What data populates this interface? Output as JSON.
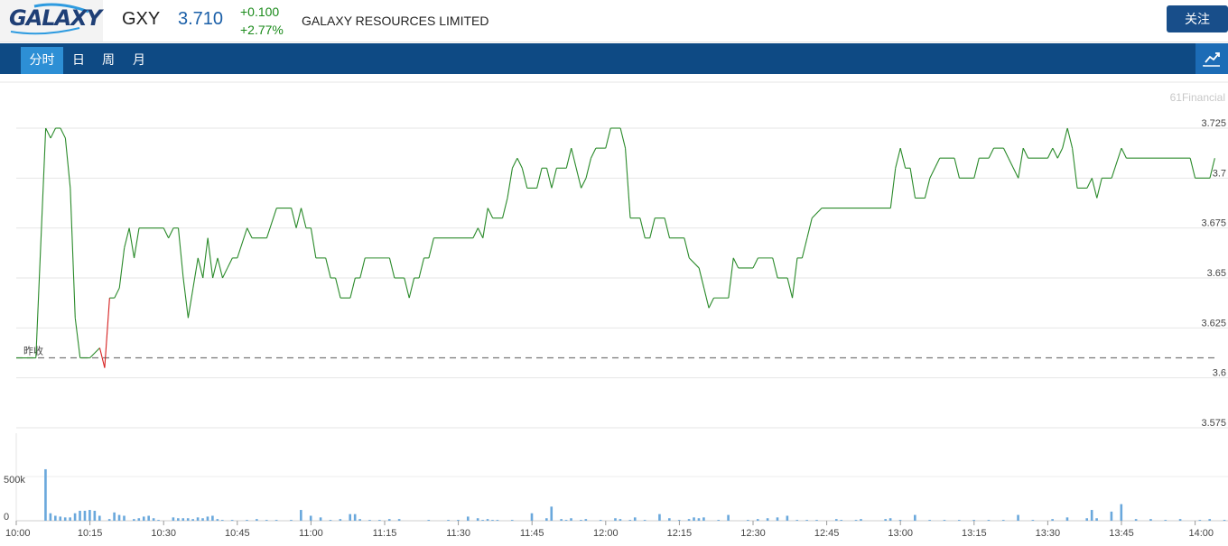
{
  "header": {
    "logo_text": "GALAXY",
    "ticker": "GXY",
    "price": "3.710",
    "change": "+0.100",
    "change_pct": "+2.77%",
    "company": "GALAXY RESOURCES LIMITED",
    "follow_label": "关注"
  },
  "tabs": [
    {
      "label": "分时",
      "active": true
    },
    {
      "label": "日",
      "active": false
    },
    {
      "label": "周",
      "active": false
    },
    {
      "label": "月",
      "active": false
    }
  ],
  "colors": {
    "nav": "#0e4a84",
    "active_tab": "#2d8fd5",
    "up_line": "#2a8a2a",
    "down_line": "#d62020",
    "volume": "#6aa8dc"
  },
  "watermark": "61Financial",
  "chart_data": {
    "type": "line",
    "prev_close": 3.61,
    "prev_close_label": "昨收",
    "ylim": [
      3.575,
      3.725
    ],
    "y_ticks": [
      3.725,
      3.7,
      3.675,
      3.65,
      3.625,
      3.6,
      3.575
    ],
    "y_tick_labels": [
      "3.725",
      "3.7",
      "3.675",
      "3.65",
      "3.625",
      "3.6",
      "3.575"
    ],
    "x_tick_labels": [
      "10:00",
      "10:15",
      "10:30",
      "10:45",
      "11:00",
      "11:15",
      "11:30",
      "11:45",
      "12:00",
      "12:15",
      "12:30",
      "12:45",
      "13:00",
      "13:15",
      "13:30",
      "13:45",
      "14:00"
    ],
    "price_series": [
      [
        "10:00",
        3.61
      ],
      [
        "10:04",
        3.61
      ],
      [
        "10:06",
        3.725
      ],
      [
        "10:07",
        3.72
      ],
      [
        "10:08",
        3.725
      ],
      [
        "10:09",
        3.725
      ],
      [
        "10:10",
        3.72
      ],
      [
        "10:11",
        3.695
      ],
      [
        "10:12",
        3.63
      ],
      [
        "10:13",
        3.61
      ],
      [
        "10:15",
        3.61
      ],
      [
        "10:17",
        3.615
      ],
      [
        "10:18",
        3.605
      ],
      [
        "10:19",
        3.64
      ],
      [
        "10:20",
        3.64
      ],
      [
        "10:21",
        3.645
      ],
      [
        "10:22",
        3.665
      ],
      [
        "10:23",
        3.675
      ],
      [
        "10:24",
        3.66
      ],
      [
        "10:25",
        3.675
      ],
      [
        "10:30",
        3.675
      ],
      [
        "10:31",
        3.67
      ],
      [
        "10:32",
        3.675
      ],
      [
        "10:33",
        3.675
      ],
      [
        "10:34",
        3.65
      ],
      [
        "10:35",
        3.63
      ],
      [
        "10:36",
        3.645
      ],
      [
        "10:37",
        3.66
      ],
      [
        "10:38",
        3.65
      ],
      [
        "10:39",
        3.67
      ],
      [
        "10:40",
        3.65
      ],
      [
        "10:41",
        3.66
      ],
      [
        "10:42",
        3.65
      ],
      [
        "10:43",
        3.655
      ],
      [
        "10:44",
        3.66
      ],
      [
        "10:45",
        3.66
      ],
      [
        "10:47",
        3.675
      ],
      [
        "10:48",
        3.67
      ],
      [
        "10:51",
        3.67
      ],
      [
        "10:53",
        3.685
      ],
      [
        "10:56",
        3.685
      ],
      [
        "10:57",
        3.675
      ],
      [
        "10:58",
        3.685
      ],
      [
        "10:59",
        3.675
      ],
      [
        "11:00",
        3.675
      ],
      [
        "11:01",
        3.66
      ],
      [
        "11:03",
        3.66
      ],
      [
        "11:04",
        3.65
      ],
      [
        "11:05",
        3.65
      ],
      [
        "11:06",
        3.64
      ],
      [
        "11:08",
        3.64
      ],
      [
        "11:09",
        3.65
      ],
      [
        "11:10",
        3.65
      ],
      [
        "11:11",
        3.66
      ],
      [
        "11:16",
        3.66
      ],
      [
        "11:17",
        3.65
      ],
      [
        "11:19",
        3.65
      ],
      [
        "11:20",
        3.64
      ],
      [
        "11:21",
        3.65
      ],
      [
        "11:22",
        3.65
      ],
      [
        "11:23",
        3.66
      ],
      [
        "11:24",
        3.66
      ],
      [
        "11:25",
        3.67
      ],
      [
        "11:33",
        3.67
      ],
      [
        "11:34",
        3.675
      ],
      [
        "11:35",
        3.67
      ],
      [
        "11:36",
        3.685
      ],
      [
        "11:37",
        3.68
      ],
      [
        "11:39",
        3.68
      ],
      [
        "11:40",
        3.69
      ],
      [
        "11:41",
        3.705
      ],
      [
        "11:42",
        3.71
      ],
      [
        "11:43",
        3.705
      ],
      [
        "11:44",
        3.695
      ],
      [
        "11:46",
        3.695
      ],
      [
        "11:47",
        3.705
      ],
      [
        "11:48",
        3.705
      ],
      [
        "11:49",
        3.695
      ],
      [
        "11:50",
        3.705
      ],
      [
        "11:52",
        3.705
      ],
      [
        "11:53",
        3.715
      ],
      [
        "11:55",
        3.695
      ],
      [
        "11:56",
        3.7
      ],
      [
        "11:57",
        3.71
      ],
      [
        "11:58",
        3.715
      ],
      [
        "12:00",
        3.715
      ],
      [
        "12:01",
        3.725
      ],
      [
        "12:03",
        3.725
      ],
      [
        "12:04",
        3.715
      ],
      [
        "12:05",
        3.68
      ],
      [
        "12:07",
        3.68
      ],
      [
        "12:08",
        3.67
      ],
      [
        "12:09",
        3.67
      ],
      [
        "12:10",
        3.68
      ],
      [
        "12:12",
        3.68
      ],
      [
        "12:13",
        3.67
      ],
      [
        "12:16",
        3.67
      ],
      [
        "12:17",
        3.66
      ],
      [
        "12:19",
        3.655
      ],
      [
        "12:20",
        3.645
      ],
      [
        "12:21",
        3.635
      ],
      [
        "12:22",
        3.64
      ],
      [
        "12:25",
        3.64
      ],
      [
        "12:26",
        3.66
      ],
      [
        "12:27",
        3.655
      ],
      [
        "12:30",
        3.655
      ],
      [
        "12:31",
        3.66
      ],
      [
        "12:34",
        3.66
      ],
      [
        "12:35",
        3.65
      ],
      [
        "12:37",
        3.65
      ],
      [
        "12:38",
        3.64
      ],
      [
        "12:39",
        3.66
      ],
      [
        "12:40",
        3.66
      ],
      [
        "12:41",
        3.67
      ],
      [
        "12:42",
        3.68
      ],
      [
        "12:44",
        3.685
      ],
      [
        "12:58",
        3.685
      ],
      [
        "12:59",
        3.705
      ],
      [
        "13:00",
        3.715
      ],
      [
        "13:01",
        3.705
      ],
      [
        "13:02",
        3.705
      ],
      [
        "13:03",
        3.69
      ],
      [
        "13:05",
        3.69
      ],
      [
        "13:06",
        3.7
      ],
      [
        "13:08",
        3.71
      ],
      [
        "13:11",
        3.71
      ],
      [
        "13:12",
        3.7
      ],
      [
        "13:15",
        3.7
      ],
      [
        "13:16",
        3.71
      ],
      [
        "13:18",
        3.71
      ],
      [
        "13:19",
        3.715
      ],
      [
        "13:21",
        3.715
      ],
      [
        "13:22",
        3.71
      ],
      [
        "13:24",
        3.7
      ],
      [
        "13:25",
        3.715
      ],
      [
        "13:26",
        3.71
      ],
      [
        "13:30",
        3.71
      ],
      [
        "13:31",
        3.715
      ],
      [
        "13:32",
        3.71
      ],
      [
        "13:33",
        3.715
      ],
      [
        "13:34",
        3.725
      ],
      [
        "13:35",
        3.715
      ],
      [
        "13:36",
        3.695
      ],
      [
        "13:38",
        3.695
      ],
      [
        "13:39",
        3.7
      ],
      [
        "13:40",
        3.69
      ],
      [
        "13:41",
        3.7
      ],
      [
        "13:43",
        3.7
      ],
      [
        "13:45",
        3.715
      ],
      [
        "13:46",
        3.71
      ],
      [
        "13:59",
        3.71
      ],
      [
        "14:00",
        3.7
      ],
      [
        "14:03",
        3.7
      ],
      [
        "14:04",
        3.71
      ]
    ],
    "volume_ylim": [
      0,
      600000
    ],
    "volume_ticks": [
      "0",
      "500k"
    ],
    "volume_series": [
      [
        "10:06",
        620000
      ],
      [
        "10:07",
        90000
      ],
      [
        "10:08",
        60000
      ],
      [
        "10:09",
        50000
      ],
      [
        "10:10",
        40000
      ],
      [
        "10:11",
        40000
      ],
      [
        "10:12",
        90000
      ],
      [
        "10:13",
        120000
      ],
      [
        "10:14",
        120000
      ],
      [
        "10:15",
        130000
      ],
      [
        "10:16",
        120000
      ],
      [
        "10:17",
        60000
      ],
      [
        "10:19",
        20000
      ],
      [
        "10:20",
        100000
      ],
      [
        "10:21",
        70000
      ],
      [
        "10:22",
        60000
      ],
      [
        "10:24",
        20000
      ],
      [
        "10:25",
        30000
      ],
      [
        "10:26",
        50000
      ],
      [
        "10:27",
        60000
      ],
      [
        "10:28",
        30000
      ],
      [
        "10:29",
        10000
      ],
      [
        "10:32",
        40000
      ],
      [
        "10:33",
        30000
      ],
      [
        "10:34",
        30000
      ],
      [
        "10:35",
        30000
      ],
      [
        "10:36",
        20000
      ],
      [
        "10:37",
        40000
      ],
      [
        "10:38",
        30000
      ],
      [
        "10:39",
        50000
      ],
      [
        "10:40",
        60000
      ],
      [
        "10:41",
        20000
      ],
      [
        "10:42",
        10000
      ],
      [
        "10:44",
        10000
      ],
      [
        "10:47",
        10000
      ],
      [
        "10:49",
        20000
      ],
      [
        "10:51",
        10000
      ],
      [
        "10:53",
        10000
      ],
      [
        "10:56",
        10000
      ],
      [
        "10:58",
        130000
      ],
      [
        "11:00",
        60000
      ],
      [
        "11:02",
        40000
      ],
      [
        "11:04",
        10000
      ],
      [
        "11:06",
        20000
      ],
      [
        "11:08",
        80000
      ],
      [
        "11:09",
        80000
      ],
      [
        "11:10",
        20000
      ],
      [
        "11:12",
        10000
      ],
      [
        "11:14",
        10000
      ],
      [
        "11:16",
        20000
      ],
      [
        "11:18",
        20000
      ],
      [
        "11:24",
        10000
      ],
      [
        "11:28",
        10000
      ],
      [
        "11:30",
        10000
      ],
      [
        "11:32",
        50000
      ],
      [
        "11:34",
        30000
      ],
      [
        "11:35",
        10000
      ],
      [
        "11:36",
        20000
      ],
      [
        "11:37",
        10000
      ],
      [
        "11:38",
        10000
      ],
      [
        "11:41",
        10000
      ],
      [
        "11:45",
        90000
      ],
      [
        "11:48",
        30000
      ],
      [
        "11:49",
        170000
      ],
      [
        "11:51",
        20000
      ],
      [
        "11:52",
        10000
      ],
      [
        "11:53",
        30000
      ],
      [
        "11:55",
        10000
      ],
      [
        "11:56",
        20000
      ],
      [
        "11:59",
        10000
      ],
      [
        "12:02",
        30000
      ],
      [
        "12:03",
        20000
      ],
      [
        "12:05",
        10000
      ],
      [
        "12:06",
        40000
      ],
      [
        "12:08",
        10000
      ],
      [
        "12:11",
        80000
      ],
      [
        "12:13",
        30000
      ],
      [
        "12:15",
        10000
      ],
      [
        "12:17",
        20000
      ],
      [
        "12:18",
        40000
      ],
      [
        "12:19",
        30000
      ],
      [
        "12:20",
        40000
      ],
      [
        "12:23",
        10000
      ],
      [
        "12:25",
        70000
      ],
      [
        "12:29",
        10000
      ],
      [
        "12:31",
        20000
      ],
      [
        "12:33",
        30000
      ],
      [
        "12:35",
        40000
      ],
      [
        "12:37",
        60000
      ],
      [
        "12:39",
        10000
      ],
      [
        "12:41",
        10000
      ],
      [
        "12:43",
        10000
      ],
      [
        "12:47",
        20000
      ],
      [
        "12:48",
        10000
      ],
      [
        "12:51",
        10000
      ],
      [
        "12:52",
        20000
      ],
      [
        "12:57",
        20000
      ],
      [
        "12:58",
        30000
      ],
      [
        "13:00",
        10000
      ],
      [
        "13:03",
        70000
      ],
      [
        "13:06",
        10000
      ],
      [
        "13:09",
        10000
      ],
      [
        "13:12",
        10000
      ],
      [
        "13:15",
        10000
      ],
      [
        "13:18",
        10000
      ],
      [
        "13:21",
        10000
      ],
      [
        "13:24",
        70000
      ],
      [
        "13:27",
        10000
      ],
      [
        "13:31",
        20000
      ],
      [
        "13:34",
        40000
      ],
      [
        "13:38",
        30000
      ],
      [
        "13:39",
        130000
      ],
      [
        "13:40",
        30000
      ],
      [
        "13:43",
        110000
      ],
      [
        "13:45",
        200000
      ],
      [
        "13:48",
        20000
      ],
      [
        "13:51",
        20000
      ],
      [
        "13:54",
        10000
      ],
      [
        "13:57",
        20000
      ],
      [
        "14:01",
        10000
      ],
      [
        "14:03",
        20000
      ],
      [
        "14:06",
        10000
      ],
      [
        "14:09",
        60000
      ]
    ]
  }
}
